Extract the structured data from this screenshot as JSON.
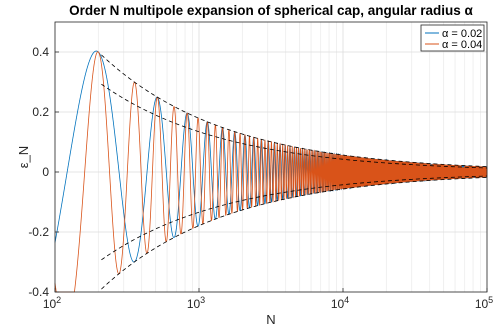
{
  "chart_data": {
    "type": "line",
    "title": "Order N multipole expansion of spherical cap, angular radius α",
    "xlabel": "N",
    "ylabel": "ε_N",
    "xscale": "log",
    "xlim": [
      100,
      100000
    ],
    "ylim": [
      -0.4,
      0.5
    ],
    "x_ticks": [
      100,
      1000,
      10000,
      100000
    ],
    "x_tick_labels": [
      {
        "base": "10",
        "exp": "2"
      },
      {
        "base": "10",
        "exp": "3"
      },
      {
        "base": "10",
        "exp": "4"
      },
      {
        "base": "10",
        "exp": "5"
      }
    ],
    "y_ticks": [
      -0.4,
      -0.2,
      0,
      0.2,
      0.4
    ],
    "y_tick_labels": [
      "-0.4",
      "-0.2",
      "0",
      "0.2",
      "0.4"
    ],
    "grid": true,
    "legend_position": "top-right",
    "series": [
      {
        "name": "α = 0.02",
        "color": "#0072BD",
        "alpha": 0.02,
        "line_width": 0.8
      },
      {
        "name": "α = 0.04",
        "color": "#D95319",
        "alpha": 0.04,
        "line_width": 0.8
      }
    ],
    "envelope": {
      "style": "dashed",
      "color": "#000000"
    }
  }
}
